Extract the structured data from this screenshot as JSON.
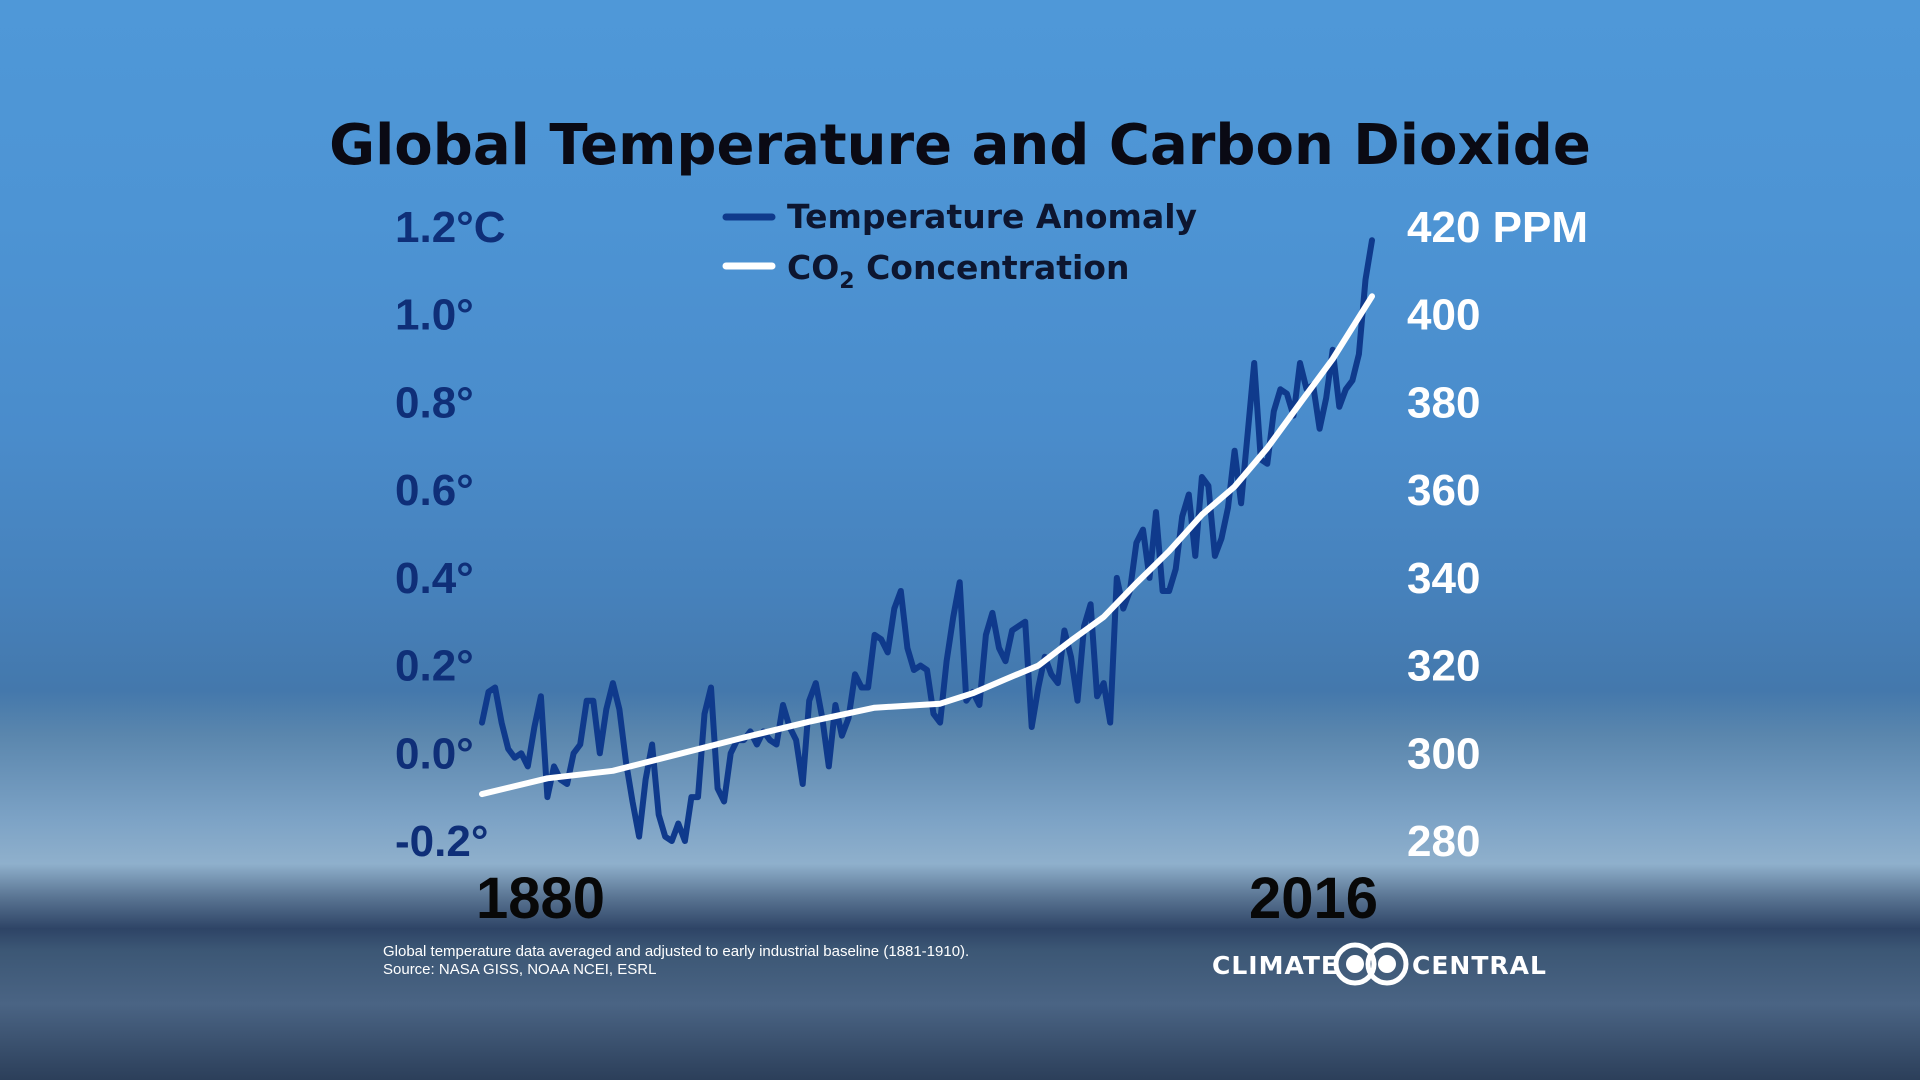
{
  "colors": {
    "temperature": "#0f3a8c",
    "co2": "#ffffff",
    "left_axis": "#0f2f78",
    "right_axis": "#ffffff",
    "title": "#0a0a14"
  },
  "chart_data": {
    "type": "line",
    "title": "Global Temperature and Carbon Dioxide",
    "legend": {
      "placement": "top-center",
      "entries": [
        {
          "series": "temperature",
          "label": "Temperature Anomaly"
        },
        {
          "series": "co2",
          "label_main": "CO",
          "label_sub": "2",
          "label_tail": " Concentration"
        }
      ]
    },
    "x_range": [
      1880,
      2016
    ],
    "x_tick_labels": [
      "1880",
      "2016"
    ],
    "y_left": {
      "range": [
        -0.2,
        1.2
      ],
      "unit": "°C",
      "tick_labels": [
        "1.2°C",
        "1.0°",
        "0.8°",
        "0.6°",
        "0.4°",
        "0.2°",
        "0.0°",
        "-0.2°"
      ],
      "tick_values": [
        1.2,
        1.0,
        0.8,
        0.6,
        0.4,
        0.2,
        0.0,
        -0.2
      ]
    },
    "y_right": {
      "range": [
        280,
        420
      ],
      "unit": "PPM",
      "tick_labels": [
        "420 PPM",
        "400",
        "380",
        "360",
        "340",
        "320",
        "300",
        "280"
      ],
      "tick_values": [
        420,
        400,
        380,
        360,
        340,
        320,
        300,
        280
      ]
    },
    "grid": false,
    "series": [
      {
        "key": "temperature",
        "name": "Temperature Anomaly",
        "axis": "left",
        "x": [
          1880,
          1881,
          1882,
          1883,
          1884,
          1885,
          1886,
          1887,
          1888,
          1889,
          1890,
          1891,
          1892,
          1893,
          1894,
          1895,
          1896,
          1897,
          1898,
          1899,
          1900,
          1901,
          1902,
          1903,
          1904,
          1905,
          1906,
          1907,
          1908,
          1909,
          1910,
          1911,
          1912,
          1913,
          1914,
          1915,
          1916,
          1917,
          1918,
          1919,
          1920,
          1921,
          1922,
          1923,
          1924,
          1925,
          1926,
          1927,
          1928,
          1929,
          1930,
          1931,
          1932,
          1933,
          1934,
          1935,
          1936,
          1937,
          1938,
          1939,
          1940,
          1941,
          1942,
          1943,
          1944,
          1945,
          1946,
          1947,
          1948,
          1949,
          1950,
          1951,
          1952,
          1953,
          1954,
          1955,
          1956,
          1957,
          1958,
          1959,
          1960,
          1961,
          1962,
          1963,
          1964,
          1965,
          1966,
          1967,
          1968,
          1969,
          1970,
          1971,
          1972,
          1973,
          1974,
          1975,
          1976,
          1977,
          1978,
          1979,
          1980,
          1981,
          1982,
          1983,
          1984,
          1985,
          1986,
          1987,
          1988,
          1989,
          1990,
          1991,
          1992,
          1993,
          1994,
          1995,
          1996,
          1997,
          1998,
          1999,
          2000,
          2001,
          2002,
          2003,
          2004,
          2005,
          2006,
          2007,
          2008,
          2009,
          2010,
          2011,
          2012,
          2013,
          2014,
          2015,
          2016
        ],
        "values": [
          0.07,
          0.14,
          0.15,
          0.07,
          0.01,
          -0.01,
          0.0,
          -0.03,
          0.06,
          0.13,
          -0.1,
          -0.03,
          -0.06,
          -0.07,
          0.0,
          0.02,
          0.12,
          0.12,
          0.0,
          0.1,
          0.16,
          0.1,
          -0.02,
          -0.11,
          -0.19,
          -0.06,
          0.02,
          -0.14,
          -0.19,
          -0.2,
          -0.16,
          -0.2,
          -0.1,
          -0.1,
          0.09,
          0.15,
          -0.08,
          -0.11,
          0.0,
          0.03,
          0.03,
          0.05,
          0.02,
          0.05,
          0.03,
          0.02,
          0.11,
          0.06,
          0.03,
          -0.07,
          0.12,
          0.16,
          0.08,
          -0.03,
          0.11,
          0.04,
          0.08,
          0.18,
          0.15,
          0.15,
          0.27,
          0.26,
          0.23,
          0.33,
          0.37,
          0.24,
          0.19,
          0.2,
          0.19,
          0.09,
          0.07,
          0.21,
          0.31,
          0.39,
          0.12,
          0.14,
          0.11,
          0.27,
          0.32,
          0.24,
          0.21,
          0.28,
          0.29,
          0.3,
          0.06,
          0.15,
          0.22,
          0.18,
          0.16,
          0.28,
          0.22,
          0.12,
          0.29,
          0.34,
          0.13,
          0.16,
          0.07,
          0.4,
          0.33,
          0.37,
          0.48,
          0.51,
          0.4,
          0.55,
          0.37,
          0.37,
          0.42,
          0.54,
          0.59,
          0.45,
          0.63,
          0.61,
          0.45,
          0.49,
          0.56,
          0.69,
          0.57,
          0.73,
          0.89,
          0.67,
          0.66,
          0.78,
          0.83,
          0.82,
          0.77,
          0.89,
          0.83,
          0.84,
          0.74,
          0.81,
          0.92,
          0.79,
          0.83,
          0.85,
          0.91,
          1.08,
          1.17
        ]
      },
      {
        "key": "co2",
        "name": "CO2 Concentration",
        "axis": "right",
        "x": [
          1880,
          1890,
          1900,
          1910,
          1920,
          1930,
          1940,
          1950,
          1955,
          1960,
          1965,
          1970,
          1975,
          1980,
          1985,
          1990,
          1995,
          2000,
          2005,
          2010,
          2016
        ],
        "values": [
          290.7,
          294.3,
          296.0,
          299.8,
          303.6,
          307.2,
          310.4,
          311.3,
          313.7,
          316.9,
          320.0,
          325.7,
          331.1,
          338.8,
          346.1,
          354.4,
          360.8,
          369.6,
          379.8,
          389.9,
          404.2
        ]
      }
    ]
  },
  "footnote": {
    "line1": "Global temperature data averaged and adjusted to early industrial baseline (1881-1910).",
    "line2": "Source: NASA GISS, NOAA NCEI, ESRL"
  },
  "brand": {
    "left": "CLIMATE",
    "right": "CENTRAL"
  }
}
